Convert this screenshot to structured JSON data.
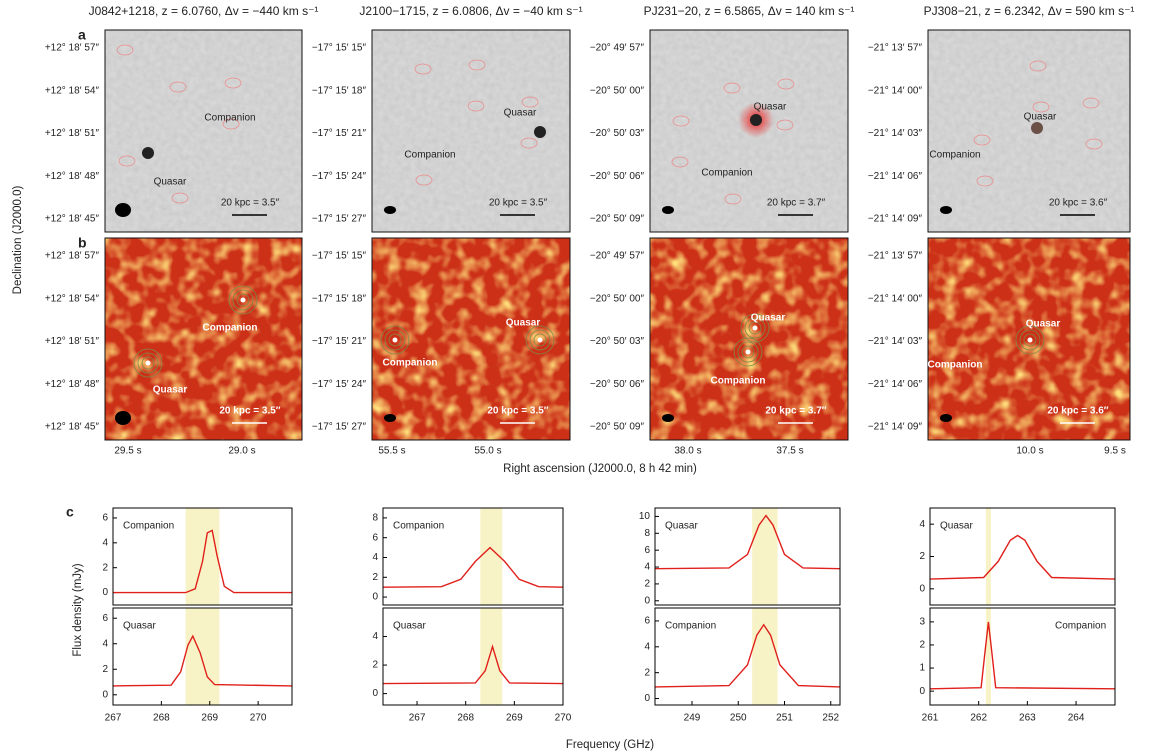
{
  "figure": {
    "panel_labels": [
      "a",
      "b",
      "c"
    ],
    "dec_label": "Declination (J2000.0)",
    "ra_label": "Right ascension (J2000.0, 8 h 42 min)",
    "flux_label": "Flux density (mJy)",
    "freq_label": "Frequency (GHz)",
    "columns": [
      {
        "title": "J0842+1218, z = 6.0760, Δv = −440 km s⁻¹",
        "dec_ticks": [
          "+12° 18′ 57″",
          "+12° 18′ 54″",
          "+12° 18′ 51″",
          "+12° 18′ 48″",
          "+12° 18′ 45″"
        ],
        "ra_ticks": [
          "29.5 s",
          "29.0 s"
        ],
        "scale": "20 kpc = 3.5″",
        "quasar": "Quasar",
        "companion": "Companion"
      },
      {
        "title": "J2100−1715, z = 6.0806, Δv = −40 km s⁻¹",
        "dec_ticks": [
          "−17° 15′ 15″",
          "−17° 15′ 18″",
          "−17° 15′ 21″",
          "−17° 15′ 24″",
          "−17° 15′ 27″"
        ],
        "ra_ticks": [
          "55.5 s",
          "55.0 s"
        ],
        "scale": "20 kpc = 3.5″",
        "quasar": "Quasar",
        "companion": "Companion"
      },
      {
        "title": "PJ231−20, z = 6.5865, Δv = 140 km s⁻¹",
        "dec_ticks": [
          "−20° 49′ 57″",
          "−20° 50′ 00″",
          "−20° 50′ 03″",
          "−20° 50′ 06″",
          "−20° 50′ 09″"
        ],
        "ra_ticks": [
          "38.0 s",
          "37.5 s"
        ],
        "scale": "20 kpc = 3.7″",
        "quasar": "Quasar",
        "companion": "Companion"
      },
      {
        "title": "PJ308−21, z = 6.2342, Δv = 590 km s⁻¹",
        "dec_ticks": [
          "−21° 13′ 57″",
          "−21° 14′ 00″",
          "−21° 14′ 03″",
          "−21° 14′ 06″",
          "−21° 14′ 09″"
        ],
        "ra_ticks": [
          "10.0 s",
          "9.5 s"
        ],
        "scale": "20 kpc = 3.6″",
        "quasar": "Quasar",
        "companion": "Companion"
      }
    ]
  },
  "chart_data": [
    {
      "type": "line",
      "label": "Companion",
      "color": "#e0201b",
      "band": [
        268.5,
        269.2
      ],
      "band_color": "#f8f3c6",
      "xlim": [
        267,
        270.7
      ],
      "ylim": [
        -1,
        6.8
      ],
      "yticks": [
        0,
        2,
        4,
        6
      ],
      "x": [
        267,
        268.5,
        268.7,
        268.85,
        268.95,
        269.05,
        269.15,
        269.3,
        269.5,
        270.7
      ],
      "values": [
        0,
        0,
        0.3,
        2.5,
        4.8,
        5.0,
        3,
        0.5,
        0,
        0
      ]
    },
    {
      "type": "line",
      "label": "Quasar",
      "color": "#e0201b",
      "band": [
        268.5,
        269.2
      ],
      "band_color": "#f8f3c6",
      "xlim": [
        267,
        270.7
      ],
      "ylim": [
        -0.8,
        6.8
      ],
      "yticks": [
        0,
        2,
        4,
        6
      ],
      "xticks": [
        267,
        268,
        269,
        270
      ],
      "x": [
        267,
        268.2,
        268.4,
        268.55,
        268.65,
        268.8,
        268.95,
        269.1,
        270.7
      ],
      "values": [
        0.7,
        0.75,
        1.8,
        3.9,
        4.6,
        3.3,
        1.4,
        0.8,
        0.7
      ]
    },
    {
      "type": "line",
      "label": "Companion",
      "color": "#e0201b",
      "band": [
        268.3,
        268.75
      ],
      "band_color": "#f8f3c6",
      "xlim": [
        266.3,
        270
      ],
      "ylim": [
        -0.8,
        9
      ],
      "yticks": [
        0,
        2,
        4,
        6,
        8
      ],
      "x": [
        266.3,
        267.5,
        267.9,
        268.2,
        268.5,
        268.8,
        269.1,
        269.5,
        270
      ],
      "values": [
        1,
        1.05,
        1.8,
        3.6,
        5.0,
        3.6,
        1.8,
        1.05,
        1
      ]
    },
    {
      "type": "line",
      "label": "Quasar",
      "color": "#e0201b",
      "band": [
        268.3,
        268.75
      ],
      "band_color": "#f8f3c6",
      "xlim": [
        266.3,
        270
      ],
      "ylim": [
        -0.8,
        6
      ],
      "yticks": [
        0,
        2,
        4
      ],
      "xticks": [
        267,
        268,
        269,
        270
      ],
      "x": [
        266.3,
        268.2,
        268.4,
        268.55,
        268.7,
        268.9,
        270
      ],
      "values": [
        0.7,
        0.75,
        1.6,
        3.3,
        1.6,
        0.75,
        0.7
      ]
    },
    {
      "type": "line",
      "label": "Quasar",
      "color": "#e0201b",
      "band": [
        250.3,
        250.85
      ],
      "band_color": "#f8f3c6",
      "xlim": [
        248.2,
        252.2
      ],
      "ylim": [
        -0.5,
        11
      ],
      "yticks": [
        0,
        2,
        4,
        6,
        8,
        10
      ],
      "x": [
        248.2,
        249.8,
        250.2,
        250.45,
        250.6,
        250.75,
        251,
        251.4,
        252.2
      ],
      "values": [
        3.8,
        3.9,
        5.5,
        9,
        10.1,
        9,
        5.5,
        3.9,
        3.8
      ]
    },
    {
      "type": "line",
      "label": "Companion",
      "color": "#e0201b",
      "band": [
        250.3,
        250.85
      ],
      "band_color": "#f8f3c6",
      "xlim": [
        248.2,
        252.2
      ],
      "ylim": [
        -0.5,
        7
      ],
      "yticks": [
        0,
        2,
        4,
        6
      ],
      "xticks": [
        249,
        250,
        251,
        252
      ],
      "x": [
        248.2,
        249.8,
        250.2,
        250.4,
        250.55,
        250.7,
        250.9,
        251.3,
        252.2
      ],
      "values": [
        0.9,
        1.0,
        2.6,
        4.9,
        5.7,
        4.9,
        2.6,
        1.0,
        0.9
      ]
    },
    {
      "type": "line",
      "label": "Quasar",
      "color": "#e0201b",
      "band": [
        262.15,
        262.25
      ],
      "band_color": "#f8f3c6",
      "xlim": [
        261,
        264.8
      ],
      "ylim": [
        -1,
        5
      ],
      "yticks": [
        0,
        2,
        4
      ],
      "x": [
        261,
        262.1,
        262.4,
        262.65,
        262.8,
        262.95,
        263.2,
        263.5,
        264.8
      ],
      "values": [
        0.6,
        0.7,
        1.7,
        3.0,
        3.3,
        3.0,
        1.7,
        0.7,
        0.6
      ]
    },
    {
      "type": "line",
      "label": "Companion",
      "color": "#e0201b",
      "band": [
        262.15,
        262.25
      ],
      "band_color": "#f8f3c6",
      "xlim": [
        261,
        264.8
      ],
      "ylim": [
        -0.6,
        3.6
      ],
      "yticks": [
        0,
        1,
        2,
        3
      ],
      "xticks": [
        261,
        262,
        263,
        264
      ],
      "x": [
        261,
        262.05,
        262.12,
        262.2,
        262.28,
        262.35,
        264.8
      ],
      "values": [
        0.1,
        0.15,
        1.5,
        3.0,
        1.5,
        0.15,
        0.1
      ]
    }
  ]
}
